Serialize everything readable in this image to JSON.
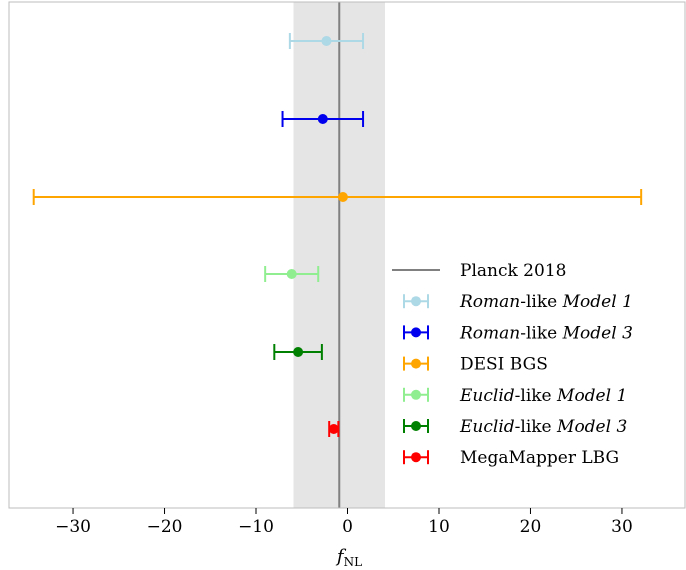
{
  "chart_data": {
    "type": "errorbar",
    "xlabel": "f",
    "xlabel_sub": "NL",
    "xlim": [
      -37,
      37
    ],
    "xticks": [
      -30,
      -20,
      -10,
      0,
      10,
      20,
      30
    ],
    "xtick_labels": [
      "−30",
      "−20",
      "−10",
      "0",
      "10",
      "20",
      "30"
    ],
    "grid": false,
    "legend_position": "lower-right",
    "reference": {
      "name": "Planck 2018",
      "value": -0.9,
      "band": [
        -5.9,
        4.1
      ],
      "line_color": "#808080",
      "band_color": "#e5e5e5"
    },
    "series": [
      {
        "label_parts": [
          {
            "t": "Roman",
            "i": true
          },
          {
            "t": "-like ",
            "i": false
          },
          {
            "t": "Model 1",
            "i": true
          }
        ],
        "value": -2.3,
        "err_low": 4.0,
        "err_high": 4.0,
        "color": "#add8e6"
      },
      {
        "label_parts": [
          {
            "t": "Roman",
            "i": true
          },
          {
            "t": "-like ",
            "i": false
          },
          {
            "t": "Model 3",
            "i": true
          }
        ],
        "value": -2.7,
        "err_low": 4.4,
        "err_high": 4.4,
        "color": "#0000ee"
      },
      {
        "label_parts": [
          {
            "t": "DESI BGS",
            "i": false
          }
        ],
        "value": -0.5,
        "err_low": 33.8,
        "err_high": 32.6,
        "color": "#ffa500"
      },
      {
        "label_parts": [
          {
            "t": "Euclid",
            "i": true
          },
          {
            "t": "-like ",
            "i": false
          },
          {
            "t": "Model 1",
            "i": true
          }
        ],
        "value": -6.1,
        "err_low": 2.9,
        "err_high": 2.9,
        "color": "#90ee90"
      },
      {
        "label_parts": [
          {
            "t": "Euclid",
            "i": true
          },
          {
            "t": "-like ",
            "i": false
          },
          {
            "t": "Model 3",
            "i": true
          }
        ],
        "value": -5.4,
        "err_low": 2.6,
        "err_high": 2.6,
        "color": "#008000"
      },
      {
        "label_parts": [
          {
            "t": "MegaMapper LBG",
            "i": false
          }
        ],
        "value": -1.5,
        "err_low": 0.5,
        "err_high": 0.5,
        "color": "#ff0000"
      }
    ]
  }
}
